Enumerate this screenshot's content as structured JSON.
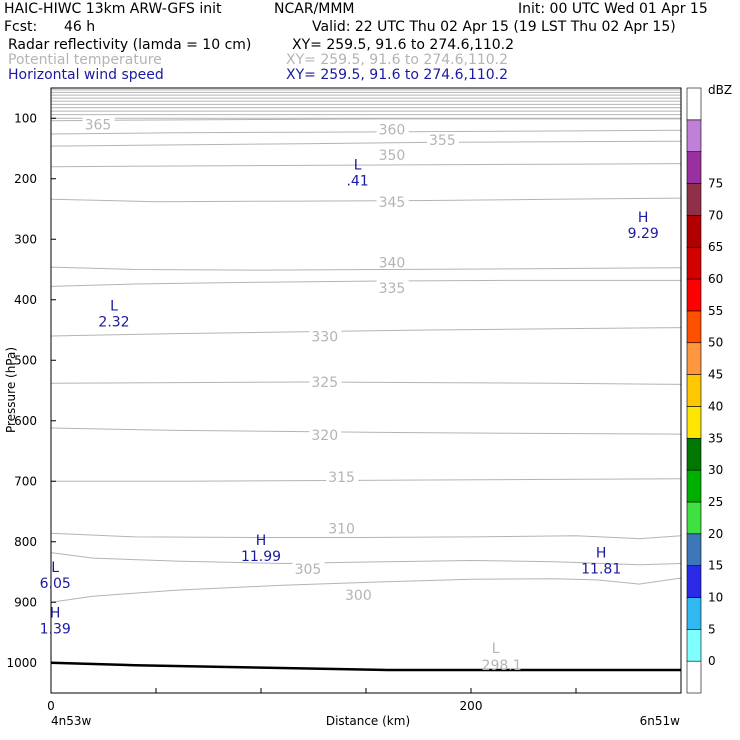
{
  "header": {
    "title": "HAIC-HIWC 13km ARW-GFS init",
    "org": "NCAR/MMM",
    "init": "Init: 00 UTC Wed 01 Apr 15",
    "fcst_label": "Fcst:",
    "fcst_value": "46 h",
    "valid": "Valid: 22 UTC Thu 02 Apr 15 (19 LST Thu 02 Apr 15)",
    "fields": [
      {
        "name": "Radar reflectivity (lamda = 10 cm)",
        "xy": "XY= 259.5, 91.6 to 274.6,110.2",
        "color": "#000000"
      },
      {
        "name": "Potential temperature",
        "xy": "XY= 259.5, 91.6 to 274.6,110.2",
        "color": "#b4b4b4"
      },
      {
        "name": "Horizontal wind speed",
        "xy": "XY= 259.5, 91.6 to 274.6,110.2",
        "color": "#1a1aa0"
      }
    ]
  },
  "chart_data": {
    "type": "contour",
    "xlabel": "Distance (km)",
    "ylabel": "Pressure (hPa)",
    "xlim": [
      0,
      300
    ],
    "ylim": [
      1050,
      50
    ],
    "x_ticks": [
      0,
      200
    ],
    "x_corner_labels": {
      "left": "4n53w",
      "right": "6n51w"
    },
    "y_ticks": [
      100,
      200,
      300,
      400,
      500,
      600,
      700,
      800,
      900,
      1000
    ],
    "theta_contours": [
      {
        "label": "365",
        "points": [
          [
            0,
            104
          ],
          [
            40,
            103
          ],
          [
            100,
            102
          ],
          [
            160,
            101
          ],
          [
            220,
            101
          ],
          [
            300,
            101
          ]
        ],
        "label_at": [
          16,
          112
        ]
      },
      {
        "label": "360",
        "points": [
          [
            0,
            126
          ],
          [
            60,
            124
          ],
          [
            120,
            123
          ],
          [
            180,
            122
          ],
          [
            240,
            121
          ],
          [
            300,
            120
          ]
        ],
        "label_at": [
          156,
          120
        ]
      },
      {
        "label": "355",
        "points": [
          [
            0,
            146
          ],
          [
            60,
            144
          ],
          [
            120,
            142
          ],
          [
            180,
            140
          ],
          [
            240,
            139
          ],
          [
            300,
            138
          ]
        ],
        "label_at": [
          180,
          138
        ]
      },
      {
        "label": "350",
        "points": [
          [
            0,
            180
          ],
          [
            60,
            179
          ],
          [
            120,
            178
          ],
          [
            180,
            177
          ],
          [
            240,
            176
          ],
          [
            300,
            175
          ]
        ],
        "label_at": [
          156,
          162
        ]
      },
      {
        "label": "345",
        "points": [
          [
            0,
            234
          ],
          [
            50,
            238
          ],
          [
            120,
            237
          ],
          [
            180,
            236
          ],
          [
            240,
            234
          ],
          [
            300,
            232
          ]
        ],
        "label_at": [
          156,
          240
        ]
      },
      {
        "label": "340",
        "points": [
          [
            0,
            346
          ],
          [
            40,
            350
          ],
          [
            100,
            351
          ],
          [
            160,
            350
          ],
          [
            220,
            349
          ],
          [
            300,
            347
          ]
        ],
        "label_at": [
          156,
          340
        ]
      },
      {
        "label": "335",
        "points": [
          [
            0,
            378
          ],
          [
            40,
            374
          ],
          [
            100,
            371
          ],
          [
            160,
            369
          ],
          [
            220,
            368
          ],
          [
            300,
            368
          ]
        ],
        "label_at": [
          156,
          382
        ]
      },
      {
        "label": "330",
        "points": [
          [
            0,
            460
          ],
          [
            60,
            456
          ],
          [
            120,
            453
          ],
          [
            180,
            450
          ],
          [
            240,
            448
          ],
          [
            300,
            446
          ]
        ],
        "label_at": [
          124,
          462
        ]
      },
      {
        "label": "325",
        "points": [
          [
            0,
            538
          ],
          [
            60,
            537
          ],
          [
            120,
            536
          ],
          [
            180,
            537
          ],
          [
            240,
            538
          ],
          [
            300,
            540
          ]
        ],
        "label_at": [
          124,
          538
        ]
      },
      {
        "label": "320",
        "points": [
          [
            0,
            612
          ],
          [
            60,
            616
          ],
          [
            120,
            618
          ],
          [
            180,
            620
          ],
          [
            240,
            621
          ],
          [
            300,
            622
          ]
        ],
        "label_at": [
          124,
          625
        ]
      },
      {
        "label": "315",
        "points": [
          [
            0,
            700
          ],
          [
            60,
            700
          ],
          [
            120,
            699
          ],
          [
            180,
            698
          ],
          [
            240,
            697
          ],
          [
            300,
            696
          ]
        ],
        "label_at": [
          132,
          695
        ]
      },
      {
        "label": "310",
        "points": [
          [
            0,
            786
          ],
          [
            40,
            792
          ],
          [
            100,
            793
          ],
          [
            150,
            793
          ],
          [
            200,
            792
          ],
          [
            250,
            790
          ],
          [
            280,
            795
          ],
          [
            300,
            790
          ]
        ],
        "label_at": [
          132,
          780
        ]
      },
      {
        "label": "305",
        "points": [
          [
            0,
            818
          ],
          [
            20,
            827
          ],
          [
            60,
            832
          ],
          [
            110,
            836
          ],
          [
            160,
            833
          ],
          [
            200,
            831
          ],
          [
            240,
            833
          ],
          [
            280,
            838
          ],
          [
            300,
            836
          ]
        ],
        "label_at": [
          116,
          847
        ]
      },
      {
        "label": "300",
        "points": [
          [
            0,
            900
          ],
          [
            20,
            890
          ],
          [
            60,
            880
          ],
          [
            110,
            872
          ],
          [
            160,
            866
          ],
          [
            200,
            862
          ],
          [
            240,
            861
          ],
          [
            260,
            863
          ],
          [
            280,
            870
          ],
          [
            300,
            860
          ]
        ],
        "label_at": [
          140,
          890
        ]
      }
    ],
    "stratosphere_band_top": 100,
    "ground_surface": [
      [
        0,
        1000
      ],
      [
        40,
        1004
      ],
      [
        100,
        1008
      ],
      [
        160,
        1012
      ],
      [
        220,
        1012
      ],
      [
        300,
        1012
      ]
    ],
    "wind_extrema": [
      {
        "type": "L",
        "value": ".41",
        "x": 146,
        "p": 195
      },
      {
        "type": "H",
        "value": "9.29",
        "x": 282,
        "p": 281
      },
      {
        "type": "L",
        "value": "2.32",
        "x": 30,
        "p": 428
      },
      {
        "type": "H",
        "value": "11.99",
        "x": 100,
        "p": 815
      },
      {
        "type": "H",
        "value": "11.81",
        "x": 262,
        "p": 836
      },
      {
        "type": "L",
        "value": "6.05",
        "x": 2,
        "p": 860
      },
      {
        "type": "H",
        "value": "1.39",
        "x": 2,
        "p": 935
      }
    ],
    "theta_extrema": [
      {
        "type": "L",
        "value": "298.1",
        "x": 206,
        "p": 1000
      }
    ]
  },
  "colorbar": {
    "unit": "dBZ",
    "labels": [
      "0",
      "5",
      "10",
      "15",
      "20",
      "25",
      "30",
      "35",
      "40",
      "45",
      "50",
      "55",
      "60",
      "65",
      "70",
      "75"
    ],
    "colors": [
      "#ffffff",
      "#80ffff",
      "#30b8f0",
      "#2a2ae8",
      "#3c78b8",
      "#40e040",
      "#00b000",
      "#007800",
      "#ffe600",
      "#ffc800",
      "#ff9640",
      "#ff5000",
      "#ff0000",
      "#d40000",
      "#b00000",
      "#903048",
      "#9a30a0",
      "#c080d8",
      "#ffffff"
    ]
  }
}
